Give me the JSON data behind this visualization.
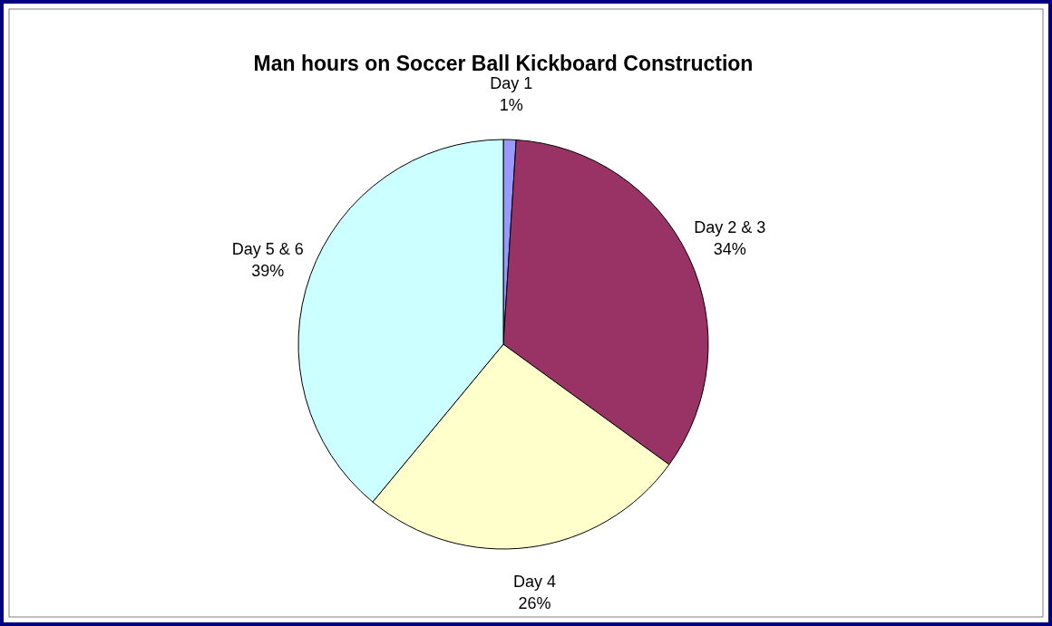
{
  "chart_data": {
    "type": "pie",
    "title": "Man hours on Soccer Ball Kickboard Construction",
    "categories": [
      "Day 1",
      "Day 2 & 3",
      "Day 4",
      "Day 5 & 6"
    ],
    "values": [
      1,
      34,
      26,
      39
    ],
    "value_labels": [
      "1%",
      "34%",
      "26%",
      "39%"
    ],
    "colors": [
      "#9999ff",
      "#993366",
      "#ffffcc",
      "#ccffff"
    ],
    "legend": false
  }
}
